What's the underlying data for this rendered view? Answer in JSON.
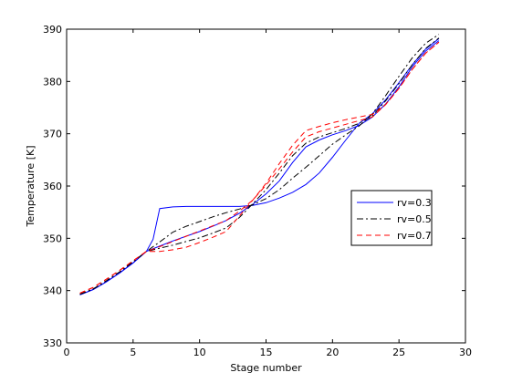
{
  "chart_data": {
    "type": "line",
    "title": "",
    "xlabel": "Stage number",
    "ylabel": "Temperature [K]",
    "xlim": [
      0,
      30
    ],
    "ylim": [
      330,
      390
    ],
    "xticks": [
      0,
      5,
      10,
      15,
      20,
      25,
      30
    ],
    "yticks": [
      330,
      340,
      350,
      360,
      370,
      380,
      390
    ],
    "grid": false,
    "legend_position": "right",
    "series": [
      {
        "name": "rv=0.3",
        "variant": "a",
        "color": "#0000ff",
        "dash": "solid",
        "x": [
          1,
          2,
          3,
          4,
          5,
          6,
          7,
          8,
          9,
          10,
          11,
          12,
          13,
          14,
          15,
          16,
          17,
          18,
          19,
          20,
          21,
          22,
          23,
          24,
          25,
          26,
          27,
          28
        ],
        "y": [
          339.2,
          340.2,
          341.7,
          343.4,
          345.3,
          347.5,
          348.5,
          349.5,
          350.4,
          351.3,
          352.3,
          353.4,
          354.8,
          356.5,
          358.5,
          361.0,
          364.5,
          367.5,
          368.8,
          369.8,
          370.6,
          371.6,
          373.2,
          375.7,
          379.0,
          382.8,
          385.8,
          387.8
        ]
      },
      {
        "name": "",
        "variant": "b",
        "color": "#0000ff",
        "dash": "solid",
        "x": [
          1,
          2,
          3,
          4,
          5,
          6,
          6.5,
          7,
          8,
          9,
          10,
          11,
          12,
          13,
          14,
          15,
          16,
          17,
          18,
          19,
          20,
          21,
          22,
          23,
          24,
          25,
          26,
          27,
          28
        ],
        "y": [
          339.2,
          340.2,
          341.7,
          343.4,
          345.3,
          347.5,
          349.8,
          355.7,
          356.0,
          356.1,
          356.1,
          356.1,
          356.1,
          356.1,
          356.3,
          356.8,
          357.7,
          358.8,
          360.3,
          362.5,
          365.5,
          368.8,
          372.0,
          373.8,
          376.5,
          379.8,
          383.2,
          386.2,
          388.2
        ]
      },
      {
        "name": "rv=0.5",
        "variant": "a",
        "color": "#000000",
        "dash": "dashdot",
        "x": [
          1,
          2,
          3,
          4,
          5,
          6,
          7,
          8,
          9,
          10,
          11,
          12,
          13,
          14,
          15,
          16,
          17,
          18,
          19,
          20,
          21,
          22,
          23,
          24,
          25,
          26,
          27,
          28
        ],
        "y": [
          339.3,
          340.3,
          341.9,
          343.6,
          345.5,
          347.5,
          348.1,
          348.7,
          349.4,
          350.1,
          351.0,
          352.0,
          354.0,
          356.6,
          359.3,
          362.5,
          365.8,
          368.2,
          369.4,
          370.2,
          371.0,
          372.0,
          373.4,
          376.3,
          379.6,
          383.2,
          386.3,
          388.3
        ]
      },
      {
        "name": "",
        "variant": "b",
        "color": "#000000",
        "dash": "dashdot",
        "x": [
          1,
          2,
          3,
          4,
          5,
          6,
          7,
          8,
          9,
          10,
          11,
          12,
          13,
          14,
          15,
          16,
          17,
          18,
          19,
          20,
          21,
          22,
          23,
          24,
          25,
          26,
          27,
          28
        ],
        "y": [
          339.3,
          340.3,
          341.9,
          343.6,
          345.5,
          347.5,
          349.3,
          351.2,
          352.3,
          353.2,
          354.1,
          354.9,
          355.6,
          356.4,
          357.6,
          359.3,
          361.5,
          363.6,
          365.8,
          368.0,
          369.8,
          371.5,
          373.8,
          377.3,
          381.0,
          384.5,
          387.3,
          389.0
        ]
      },
      {
        "name": "rv=0.7",
        "variant": "a",
        "color": "#ff0000",
        "dash": "dashed",
        "x": [
          1,
          2,
          3,
          4,
          5,
          6,
          7,
          8,
          9,
          10,
          11,
          12,
          13,
          14,
          15,
          16,
          17,
          18,
          19,
          20,
          21,
          22,
          23,
          24,
          25,
          26,
          27,
          28
        ],
        "y": [
          339.5,
          340.6,
          342.2,
          343.9,
          345.7,
          347.5,
          347.5,
          347.8,
          348.3,
          349.2,
          350.2,
          351.3,
          354.3,
          357.3,
          360.5,
          364.3,
          367.8,
          370.6,
          371.4,
          372.1,
          372.7,
          373.2,
          373.7,
          375.6,
          378.7,
          382.3,
          385.4,
          387.5
        ]
      },
      {
        "name": "",
        "variant": "b",
        "color": "#ff0000",
        "dash": "dashed",
        "x": [
          1,
          2,
          3,
          4,
          5,
          6,
          7,
          8,
          9,
          10,
          11,
          12,
          13,
          14,
          15,
          16,
          17,
          18,
          19,
          20,
          21,
          22,
          23,
          24,
          25,
          26,
          27,
          28
        ],
        "y": [
          339.5,
          340.6,
          342.2,
          343.9,
          345.7,
          347.5,
          348.4,
          349.4,
          350.4,
          351.4,
          352.4,
          353.4,
          355.2,
          357.3,
          360.2,
          363.3,
          366.5,
          369.4,
          370.4,
          371.1,
          371.8,
          372.5,
          373.2,
          375.6,
          378.7,
          382.3,
          385.4,
          387.5
        ]
      }
    ]
  }
}
